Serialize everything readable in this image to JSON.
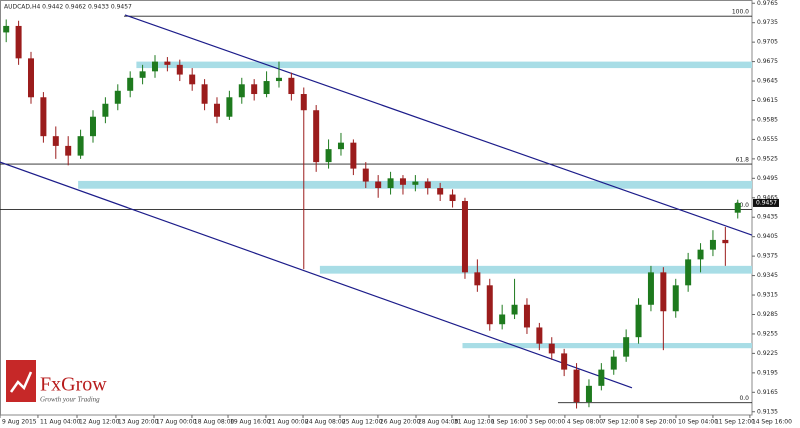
{
  "chart_data": {
    "type": "candlestick",
    "title": "AUDCAD,H4 0.9442 0.9462 0.9433 0.9457",
    "up_color": "#1e7a1e",
    "down_color": "#9b1c1c",
    "xlim": [
      -0.5,
      60.15
    ],
    "ylim": [
      0.913,
      0.977
    ],
    "yticks": [
      0.9765,
      0.9735,
      0.9705,
      0.9675,
      0.9645,
      0.9615,
      0.9585,
      0.9555,
      0.9525,
      0.9495,
      0.9465,
      0.9435,
      0.9405,
      0.9375,
      0.9345,
      0.9315,
      0.9285,
      0.9255,
      0.9225,
      0.9195,
      0.9165,
      0.9135
    ],
    "xticks": [
      {
        "value": -0.5,
        "label": "9 Aug 2015"
      },
      {
        "value": 2.56,
        "label": "11 Aug 04:00"
      },
      {
        "value": 5.71,
        "label": "12 Aug 12:00"
      },
      {
        "value": 8.85,
        "label": "13 Aug 20:00"
      },
      {
        "value": 11.92,
        "label": "17 Aug 00:00"
      },
      {
        "value": 14.98,
        "label": "18 Aug 08:00"
      },
      {
        "value": 17.89,
        "label": "19 Aug 16:00"
      },
      {
        "value": 20.95,
        "label": "21 Aug 00:00"
      },
      {
        "value": 23.94,
        "label": "24 Aug 08:00"
      },
      {
        "value": 26.92,
        "label": "25 Aug 12:00"
      },
      {
        "value": 29.98,
        "label": "26 Aug 20:00"
      },
      {
        "value": 33.05,
        "label": "28 Aug 04:00"
      },
      {
        "value": 35.95,
        "label": "31 Aug 12:00"
      },
      {
        "value": 38.94,
        "label": "1 Sep 16:00"
      },
      {
        "value": 42.0,
        "label": "3 Sep 00:00"
      },
      {
        "value": 45.06,
        "label": "4 Sep 08:00"
      },
      {
        "value": 47.89,
        "label": "7 Sep 12:00"
      },
      {
        "value": 50.95,
        "label": "8 Sep 20:00"
      },
      {
        "value": 54.02,
        "label": "10 Sep 04:00"
      },
      {
        "value": 57.0,
        "label": "11 Sep 12:00"
      },
      {
        "value": 59.98,
        "label": "14 Sep 16:00"
      }
    ],
    "ohlc": [
      [
        0.972,
        0.974,
        0.9705,
        0.973
      ],
      [
        0.973,
        0.9738,
        0.967,
        0.968
      ],
      [
        0.968,
        0.969,
        0.961,
        0.962
      ],
      [
        0.962,
        0.9628,
        0.955,
        0.956
      ],
      [
        0.956,
        0.9575,
        0.9525,
        0.9545
      ],
      [
        0.9545,
        0.956,
        0.9515,
        0.953
      ],
      [
        0.953,
        0.957,
        0.9525,
        0.956
      ],
      [
        0.956,
        0.96,
        0.955,
        0.959
      ],
      [
        0.959,
        0.962,
        0.958,
        0.961
      ],
      [
        0.961,
        0.964,
        0.96,
        0.963
      ],
      [
        0.963,
        0.966,
        0.962,
        0.965
      ],
      [
        0.965,
        0.967,
        0.964,
        0.966
      ],
      [
        0.966,
        0.9685,
        0.965,
        0.9675
      ],
      [
        0.9675,
        0.9682,
        0.966,
        0.967
      ],
      [
        0.967,
        0.9678,
        0.9645,
        0.9655
      ],
      [
        0.9655,
        0.9665,
        0.963,
        0.964
      ],
      [
        0.964,
        0.9648,
        0.96,
        0.961
      ],
      [
        0.961,
        0.962,
        0.958,
        0.959
      ],
      [
        0.959,
        0.963,
        0.9585,
        0.962
      ],
      [
        0.962,
        0.965,
        0.961,
        0.964
      ],
      [
        0.964,
        0.9648,
        0.9615,
        0.9625
      ],
      [
        0.9625,
        0.966,
        0.962,
        0.9645
      ],
      [
        0.9645,
        0.9675,
        0.9635,
        0.965
      ],
      [
        0.965,
        0.9658,
        0.9615,
        0.9625
      ],
      [
        0.9625,
        0.9635,
        0.9355,
        0.96
      ],
      [
        0.96,
        0.9608,
        0.9505,
        0.952
      ],
      [
        0.952,
        0.9555,
        0.951,
        0.954
      ],
      [
        0.954,
        0.9565,
        0.953,
        0.955
      ],
      [
        0.955,
        0.9555,
        0.95,
        0.951
      ],
      [
        0.951,
        0.952,
        0.948,
        0.949
      ],
      [
        0.949,
        0.95,
        0.9465,
        0.948
      ],
      [
        0.948,
        0.9505,
        0.947,
        0.9495
      ],
      [
        0.9495,
        0.95,
        0.947,
        0.9485
      ],
      [
        0.9485,
        0.95,
        0.9475,
        0.949
      ],
      [
        0.949,
        0.9495,
        0.947,
        0.948
      ],
      [
        0.948,
        0.9488,
        0.946,
        0.947
      ],
      [
        0.947,
        0.9478,
        0.945,
        0.946
      ],
      [
        0.946,
        0.9465,
        0.934,
        0.935
      ],
      [
        0.935,
        0.937,
        0.932,
        0.933
      ],
      [
        0.933,
        0.934,
        0.926,
        0.927
      ],
      [
        0.927,
        0.93,
        0.9262,
        0.9285
      ],
      [
        0.9285,
        0.934,
        0.9278,
        0.93
      ],
      [
        0.93,
        0.931,
        0.9255,
        0.9265
      ],
      [
        0.9265,
        0.9272,
        0.923,
        0.924
      ],
      [
        0.924,
        0.925,
        0.9215,
        0.9225
      ],
      [
        0.9225,
        0.9232,
        0.919,
        0.92
      ],
      [
        0.92,
        0.921,
        0.914,
        0.915
      ],
      [
        0.915,
        0.9185,
        0.9142,
        0.9175
      ],
      [
        0.9175,
        0.921,
        0.9168,
        0.92
      ],
      [
        0.92,
        0.923,
        0.9192,
        0.922
      ],
      [
        0.922,
        0.9262,
        0.9212,
        0.925
      ],
      [
        0.925,
        0.931,
        0.924,
        0.93
      ],
      [
        0.93,
        0.936,
        0.929,
        0.935
      ],
      [
        0.935,
        0.9358,
        0.923,
        0.929
      ],
      [
        0.929,
        0.934,
        0.928,
        0.933
      ],
      [
        0.933,
        0.938,
        0.932,
        0.937
      ],
      [
        0.937,
        0.9395,
        0.935,
        0.9385
      ],
      [
        0.9385,
        0.9415,
        0.9375,
        0.94
      ],
      [
        0.94,
        0.942,
        0.936,
        0.9395
      ],
      [
        0.9442,
        0.9462,
        0.9433,
        0.9457
      ]
    ],
    "levels": [
      {
        "label": "100.0",
        "price": 0.9745,
        "from": 9.5
      },
      {
        "label": "61.8",
        "price": 0.9517,
        "from": -0.5
      },
      {
        "label": "50.0",
        "price": 0.9447,
        "from": -0.5
      },
      {
        "label": "0.0",
        "price": 0.9149,
        "from": 44.5
      }
    ],
    "zones": [
      {
        "from": 10.5,
        "low": 0.9665,
        "high": 0.9675
      },
      {
        "from": 5.8,
        "low": 0.9479,
        "high": 0.9491
      },
      {
        "from": 25.3,
        "low": 0.9348,
        "high": 0.936
      },
      {
        "from": 36.8,
        "low": 0.9233,
        "high": 0.9241
      }
    ],
    "zone_color": "#a8dde6",
    "trendlines": [
      {
        "x": [
          9.58,
          62
        ],
        "y": [
          0.9747,
          0.9395
        ],
        "color": "#1c1c8a"
      },
      {
        "x": [
          -0.5,
          50.47
        ],
        "y": [
          0.952,
          0.9172
        ],
        "color": "#1c1c8a"
      }
    ]
  },
  "logo": {
    "name": "FxGrow",
    "tagline": "Growth your Trading"
  }
}
